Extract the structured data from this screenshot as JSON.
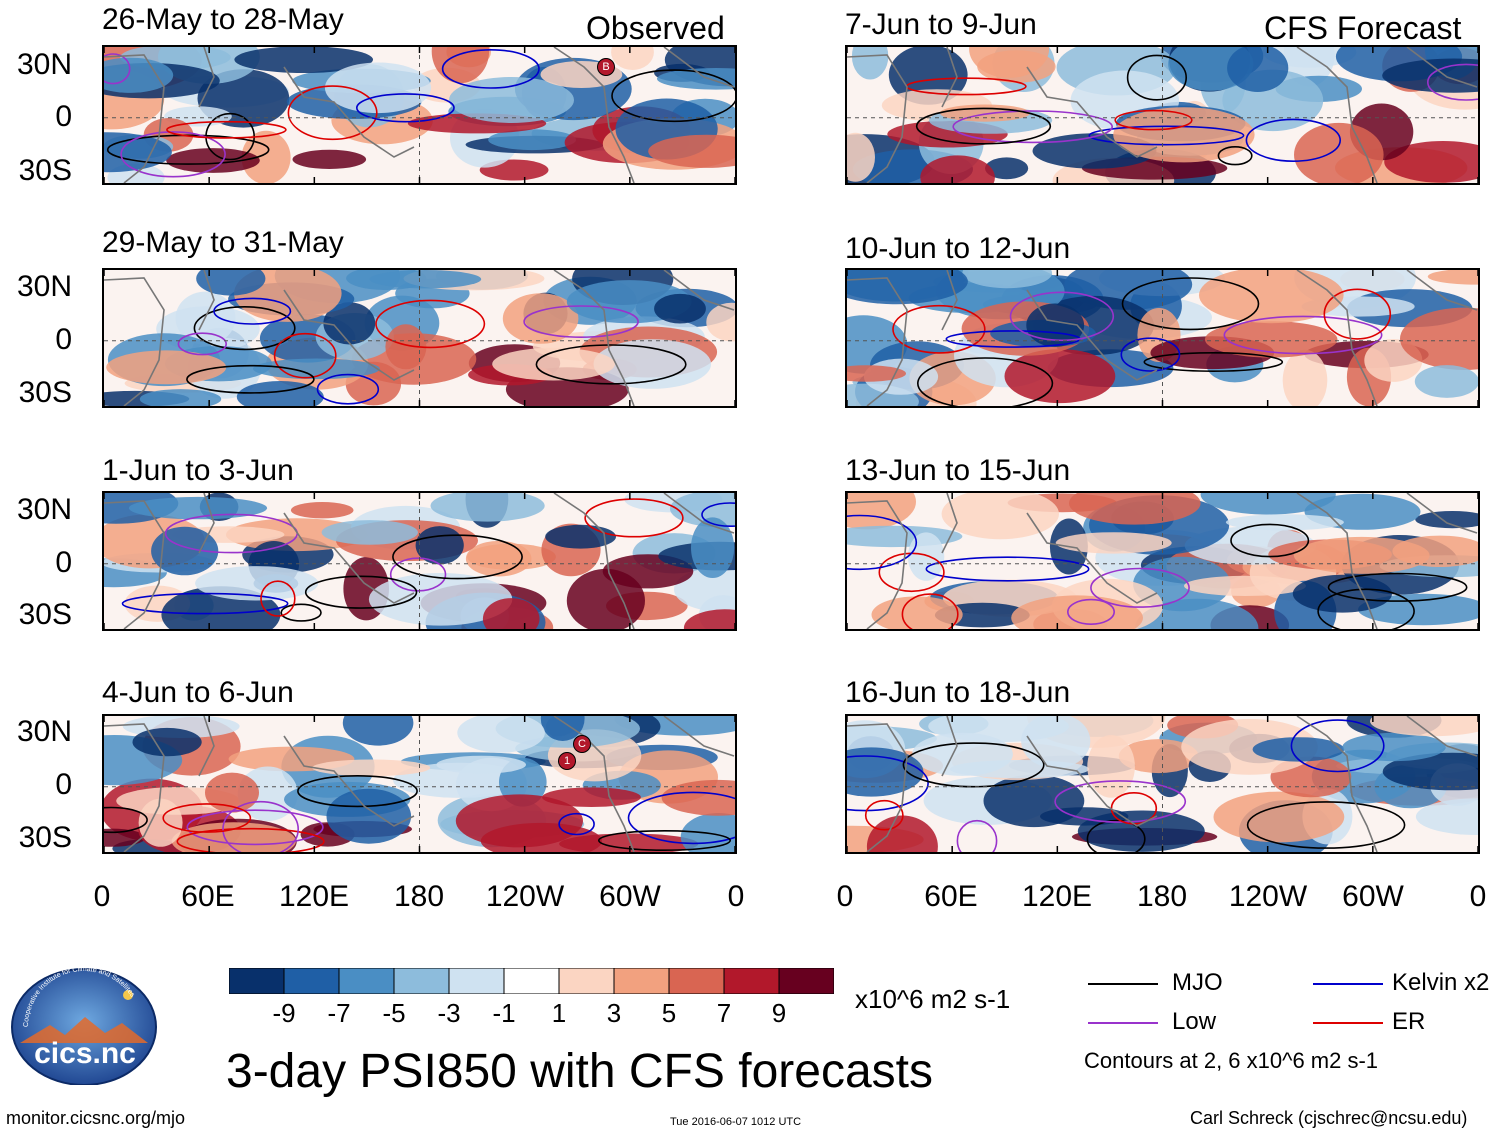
{
  "observed_label": "Observed",
  "forecast_label": "CFS Forecast",
  "left_panels": [
    {
      "title": "26-May to 28-May"
    },
    {
      "title": "29-May to 31-May"
    },
    {
      "title": "1-Jun to 3-Jun"
    },
    {
      "title": "4-Jun to 6-Jun"
    }
  ],
  "right_panels": [
    {
      "title": "7-Jun to 9-Jun"
    },
    {
      "title": "10-Jun to 12-Jun"
    },
    {
      "title": "13-Jun to 15-Jun"
    },
    {
      "title": "16-Jun to 18-Jun"
    }
  ],
  "y_labels": [
    "30N",
    "0",
    "30S"
  ],
  "x_labels": [
    "0",
    "60E",
    "120E",
    "180",
    "120W",
    "60W",
    "0"
  ],
  "storm_markers": {
    "b": "B",
    "c": "C",
    "one": "1"
  },
  "colorbar": {
    "colors": [
      "#08306b",
      "#1f5fa6",
      "#4a8ec4",
      "#8dbcdc",
      "#cfe2f1",
      "#ffffff",
      "#fbd5c2",
      "#f2a17f",
      "#d96552",
      "#b2182b",
      "#67001f"
    ],
    "ticks": [
      "-9",
      "-7",
      "-5",
      "-3",
      "-1",
      "1",
      "3",
      "5",
      "7",
      "9"
    ],
    "units": "x10^6 m2 s-1"
  },
  "main_title": "3-day PSI850 with CFS forecasts",
  "legend": {
    "mjo": {
      "label": "MJO",
      "color": "#000000"
    },
    "kelvin": {
      "label": "Kelvin x2",
      "color": "#0000cc"
    },
    "low": {
      "label": "Low",
      "color": "#9933cc"
    },
    "er": {
      "label": "ER",
      "color": "#dd0000"
    },
    "note": "Contours at 2, 6 x10^6 m2 s-1"
  },
  "logo": {
    "arc_text": "Cooperative Institute for Climate and Satellites",
    "name": "cics.nc"
  },
  "footer": {
    "url": "monitor.cicsnc.org/mjo",
    "timestamp": "Tue 2016-06-07 1012 UTC",
    "author": "Carl Schreck (cjschrec@ncsu.edu)"
  }
}
